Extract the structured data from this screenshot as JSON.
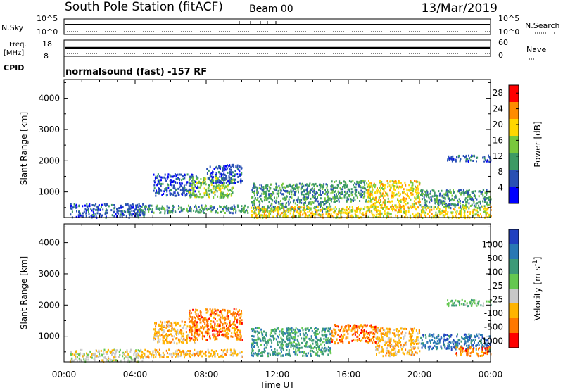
{
  "header": {
    "station": "South Pole Station (fitACF)",
    "beam": "Beam 00",
    "date": "13/Mar/2019"
  },
  "params": {
    "nsky_label": "N.Sky",
    "nsearch_label": "N.Search",
    "freq_label_line1": "Freq.",
    "freq_label_line2": "[MHz]",
    "nave_label": "Nave",
    "cpid_label": "CPID",
    "cpid_text": "normalsound (fast) -157 RF",
    "nsky_ticks": [
      "10^5",
      "10^0"
    ],
    "nsearch_ticks": [
      "10^5",
      "10^0"
    ],
    "freq_ticks": [
      "18",
      "8"
    ],
    "nave_ticks": [
      "60",
      "0"
    ]
  },
  "chart_data": [
    {
      "type": "heatmap",
      "title": "",
      "xlabel": "",
      "ylabel": "Slant Range [km]",
      "x_ticks": [
        "00:00",
        "04:00",
        "08:00",
        "12:00",
        "16:00",
        "20:00",
        "00:00"
      ],
      "xlim_hours": [
        0,
        24
      ],
      "ylim": [
        180,
        4600
      ],
      "y_ticks": [
        1000,
        2000,
        3000,
        4000
      ],
      "colorbar": {
        "label": "Power [dB]",
        "ticks": [
          "4",
          "8",
          "12",
          "16",
          "20",
          "24",
          "28"
        ],
        "range": [
          0,
          30
        ],
        "colors": [
          "#0000ff",
          "#2850b4",
          "#3c9a64",
          "#78c83c",
          "#ffd700",
          "#ff8c00",
          "#ff0000"
        ]
      },
      "regions": [
        {
          "t0": 0.3,
          "t1": 4.5,
          "r0": 200,
          "r1": 650,
          "value": 6
        },
        {
          "t0": 4.0,
          "t1": 10.5,
          "r0": 350,
          "r1": 600,
          "value": 10
        },
        {
          "t0": 5.0,
          "t1": 7.5,
          "r0": 900,
          "r1": 1600,
          "value": 6
        },
        {
          "t0": 7.0,
          "t1": 9.5,
          "r0": 850,
          "r1": 1500,
          "value": 14
        },
        {
          "t0": 8.0,
          "t1": 10.0,
          "r0": 1300,
          "r1": 1900,
          "value": 6
        },
        {
          "t0": 10.5,
          "t1": 15.0,
          "r0": 400,
          "r1": 1300,
          "value": 10
        },
        {
          "t0": 15.0,
          "t1": 17.0,
          "r0": 700,
          "r1": 1400,
          "value": 12
        },
        {
          "t0": 17.0,
          "t1": 20.0,
          "r0": 500,
          "r1": 1400,
          "value": 20
        },
        {
          "t0": 20.0,
          "t1": 24.0,
          "r0": 500,
          "r1": 1100,
          "value": 10
        },
        {
          "t0": 21.5,
          "t1": 24.0,
          "r0": 2000,
          "r1": 2200,
          "value": 6
        },
        {
          "t0": 10.5,
          "t1": 24.0,
          "r0": 200,
          "r1": 550,
          "value": 18
        }
      ]
    },
    {
      "type": "heatmap",
      "title": "",
      "xlabel": "Time UT",
      "ylabel": "Slant Range [km]",
      "x_ticks": [
        "00:00",
        "04:00",
        "08:00",
        "12:00",
        "16:00",
        "20:00",
        "00:00"
      ],
      "xlim_hours": [
        0,
        24
      ],
      "ylim": [
        180,
        4600
      ],
      "y_ticks": [
        1000,
        2000,
        3000,
        4000
      ],
      "colorbar": {
        "label": "Velocity [m s^-1]",
        "ticks": [
          "1000",
          "500",
          "100",
          "25",
          "-25",
          "-100",
          "-500",
          "-1000"
        ],
        "colors": [
          "#2040c0",
          "#2878b4",
          "#3c9a78",
          "#64c850",
          "#c8c8c8",
          "#ffb400",
          "#ff7800",
          "#ff0000"
        ]
      },
      "regions": [
        {
          "t0": 0.3,
          "t1": 4.5,
          "r0": 200,
          "r1": 600,
          "value": -25
        },
        {
          "t0": 4.0,
          "t1": 10.0,
          "r0": 350,
          "r1": 600,
          "value": -100
        },
        {
          "t0": 5.0,
          "t1": 7.5,
          "r0": 800,
          "r1": 1500,
          "value": -100
        },
        {
          "t0": 7.0,
          "t1": 10.0,
          "r0": 900,
          "r1": 1900,
          "value": -500
        },
        {
          "t0": 10.5,
          "t1": 15.0,
          "r0": 400,
          "r1": 1300,
          "value": 100
        },
        {
          "t0": 15.0,
          "t1": 17.5,
          "r0": 800,
          "r1": 1400,
          "value": -500
        },
        {
          "t0": 17.5,
          "t1": 20.0,
          "r0": 400,
          "r1": 1300,
          "value": -100
        },
        {
          "t0": 20.0,
          "t1": 24.0,
          "r0": 600,
          "r1": 1100,
          "value": 500
        },
        {
          "t0": 22.0,
          "t1": 24.0,
          "r0": 400,
          "r1": 700,
          "value": -500
        },
        {
          "t0": 21.5,
          "t1": 24.0,
          "r0": 2000,
          "r1": 2200,
          "value": 25
        }
      ]
    }
  ]
}
